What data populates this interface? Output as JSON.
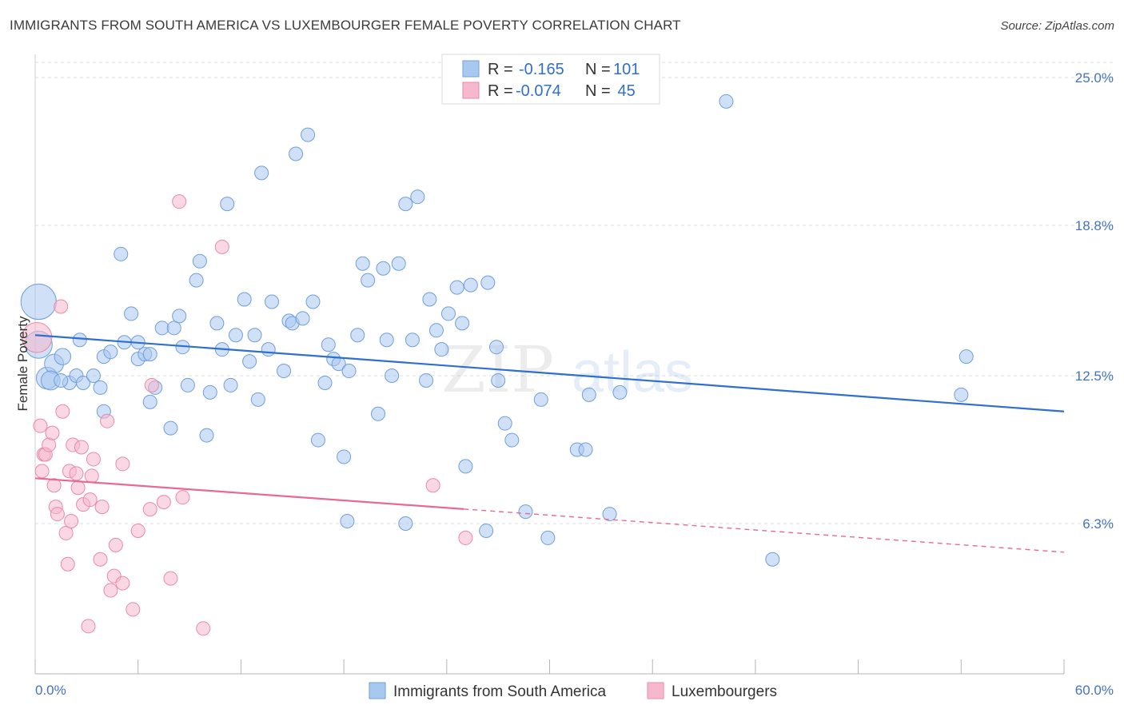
{
  "title": "IMMIGRANTS FROM SOUTH AMERICA VS LUXEMBOURGER FEMALE POVERTY CORRELATION CHART",
  "source": "Source: ZipAtlas.com",
  "watermark": {
    "zip": "ZIP",
    "atlas": "atlas"
  },
  "chart_data": {
    "type": "scatter",
    "ylabel": "Female Poverty",
    "xlim": [
      0,
      60
    ],
    "ylim": [
      0,
      25.0
    ],
    "x_tick_labels": [
      "0.0%",
      "60.0%"
    ],
    "y_ticks": [
      6.3,
      12.5,
      18.8,
      25.0
    ],
    "y_tick_labels": [
      "6.3%",
      "12.5%",
      "18.8%",
      "25.0%"
    ],
    "grid": true,
    "legend": {
      "placement": "top-center",
      "entries": [
        {
          "r_label": "R = ",
          "r_value": "-0.165",
          "n_label": "N = ",
          "n_value": "101",
          "color": "#a9c8f0"
        },
        {
          "r_label": "R = ",
          "r_value": "-0.074",
          "n_label": "N = ",
          "n_value": " 45",
          "color": "#f6b8cc"
        }
      ]
    },
    "series": [
      {
        "name": "Immigrants from South America",
        "color": "#a9c8f0",
        "stroke": "#6f9fdc",
        "trend_color": "#2f6fcf",
        "trend": {
          "x0": 0,
          "y0": 14.2,
          "x1": 60,
          "y1": 11.0,
          "solid_to": 60
        },
        "points": [
          [
            0.2,
            15.6,
            2.6
          ],
          [
            0.2,
            13.8,
            2.0
          ],
          [
            0.7,
            12.4,
            1.6
          ],
          [
            1.1,
            13.0,
            1.4
          ],
          [
            1.6,
            13.3,
            1.2
          ],
          [
            2.0,
            12.2,
            1.0
          ],
          [
            2.4,
            12.5,
            1.0
          ],
          [
            2.6,
            14.0,
            1.0
          ],
          [
            2.8,
            12.2,
            1.0
          ],
          [
            3.4,
            12.5,
            1.0
          ],
          [
            3.8,
            12.0,
            1.0
          ],
          [
            4.0,
            11.0,
            1.0
          ],
          [
            4.0,
            13.3,
            1.0
          ],
          [
            4.4,
            13.5,
            1.0
          ],
          [
            5.0,
            17.6,
            1.0
          ],
          [
            5.2,
            13.9,
            1.0
          ],
          [
            5.6,
            15.1,
            1.0
          ],
          [
            6.0,
            13.2,
            1.0
          ],
          [
            6.0,
            13.9,
            1.0
          ],
          [
            6.4,
            13.4,
            1.0
          ],
          [
            6.7,
            13.4,
            1.0
          ],
          [
            6.7,
            11.4,
            1.0
          ],
          [
            7.0,
            12.0,
            1.0
          ],
          [
            7.4,
            14.5,
            1.0
          ],
          [
            7.9,
            10.3,
            1.0
          ],
          [
            8.1,
            14.5,
            1.0
          ],
          [
            8.4,
            15.0,
            1.0
          ],
          [
            8.6,
            13.7,
            1.0
          ],
          [
            8.9,
            12.1,
            1.0
          ],
          [
            9.4,
            16.5,
            1.0
          ],
          [
            9.6,
            17.3,
            1.0
          ],
          [
            10.0,
            10.0,
            1.0
          ],
          [
            10.2,
            11.8,
            1.0
          ],
          [
            10.6,
            14.7,
            1.0
          ],
          [
            10.9,
            13.6,
            1.0
          ],
          [
            11.2,
            19.7,
            1.0
          ],
          [
            11.4,
            12.1,
            1.0
          ],
          [
            11.7,
            14.2,
            1.0
          ],
          [
            12.2,
            15.7,
            1.0
          ],
          [
            12.5,
            13.1,
            1.0
          ],
          [
            12.8,
            14.2,
            1.0
          ],
          [
            13.0,
            11.5,
            1.0
          ],
          [
            13.2,
            21.0,
            1.0
          ],
          [
            13.6,
            13.6,
            1.0
          ],
          [
            13.8,
            15.6,
            1.0
          ],
          [
            14.5,
            12.7,
            1.0
          ],
          [
            14.8,
            14.8,
            1.0
          ],
          [
            15.0,
            14.7,
            1.0
          ],
          [
            15.2,
            21.8,
            1.0
          ],
          [
            15.6,
            14.9,
            1.0
          ],
          [
            15.9,
            22.6,
            1.0
          ],
          [
            16.2,
            15.6,
            1.0
          ],
          [
            16.5,
            9.8,
            1.0
          ],
          [
            16.9,
            12.2,
            1.0
          ],
          [
            17.1,
            13.8,
            1.0
          ],
          [
            17.4,
            13.2,
            1.0
          ],
          [
            17.7,
            13.0,
            1.0
          ],
          [
            18.0,
            9.1,
            1.0
          ],
          [
            18.2,
            6.4,
            1.0
          ],
          [
            18.3,
            12.7,
            1.0
          ],
          [
            18.8,
            14.2,
            1.0
          ],
          [
            19.1,
            17.2,
            1.0
          ],
          [
            19.4,
            16.5,
            1.0
          ],
          [
            20.0,
            10.9,
            1.0
          ],
          [
            20.3,
            17.0,
            1.0
          ],
          [
            20.5,
            14.0,
            1.0
          ],
          [
            20.8,
            12.5,
            1.0
          ],
          [
            21.2,
            17.2,
            1.0
          ],
          [
            21.6,
            19.7,
            1.0
          ],
          [
            21.6,
            6.3,
            1.0
          ],
          [
            22.0,
            14.0,
            1.0
          ],
          [
            22.3,
            20.0,
            1.0
          ],
          [
            22.8,
            12.3,
            1.0
          ],
          [
            23.0,
            15.7,
            1.0
          ],
          [
            23.4,
            14.4,
            1.0
          ],
          [
            23.7,
            13.6,
            1.0
          ],
          [
            24.1,
            15.1,
            1.0
          ],
          [
            24.6,
            16.2,
            1.0
          ],
          [
            24.9,
            14.7,
            1.0
          ],
          [
            25.1,
            8.7,
            1.0
          ],
          [
            25.4,
            16.3,
            1.0
          ],
          [
            26.3,
            6.0,
            1.0
          ],
          [
            26.4,
            16.4,
            1.0
          ],
          [
            26.9,
            13.7,
            1.0
          ],
          [
            27.0,
            12.3,
            1.0
          ],
          [
            27.4,
            10.5,
            1.0
          ],
          [
            27.8,
            9.8,
            1.0
          ],
          [
            28.6,
            6.8,
            1.0
          ],
          [
            29.5,
            11.5,
            1.0
          ],
          [
            29.9,
            5.7,
            1.0
          ],
          [
            31.6,
            9.4,
            1.0
          ],
          [
            32.1,
            9.4,
            1.0
          ],
          [
            32.3,
            11.7,
            1.0
          ],
          [
            33.5,
            6.7,
            1.0
          ],
          [
            34.1,
            11.8,
            1.0
          ],
          [
            40.3,
            24.0,
            1.0
          ],
          [
            43.0,
            4.8,
            1.0
          ],
          [
            54.0,
            11.7,
            1.0
          ],
          [
            54.3,
            13.3,
            1.0
          ],
          [
            0.9,
            12.3,
            1.4
          ],
          [
            1.5,
            12.3,
            1.0
          ]
        ]
      },
      {
        "name": "Luxembourgers",
        "color": "#f6b8cc",
        "stroke": "#e88aa8",
        "trend_color": "#e86a94",
        "trend": {
          "x0": 0,
          "y0": 8.2,
          "x1": 60,
          "y1": 5.1,
          "solid_to": 25
        },
        "points": [
          [
            0.1,
            14.1,
            2.2
          ],
          [
            0.3,
            10.4,
            1.0
          ],
          [
            0.4,
            8.5,
            1.0
          ],
          [
            0.5,
            9.2,
            1.0
          ],
          [
            0.6,
            9.2,
            1.0
          ],
          [
            0.8,
            9.6,
            1.0
          ],
          [
            1.0,
            10.1,
            1.0
          ],
          [
            1.1,
            7.9,
            1.0
          ],
          [
            1.2,
            7.0,
            1.0
          ],
          [
            1.3,
            6.7,
            1.0
          ],
          [
            1.5,
            15.4,
            1.0
          ],
          [
            1.6,
            11.0,
            1.0
          ],
          [
            1.8,
            5.9,
            1.0
          ],
          [
            1.9,
            4.6,
            1.0
          ],
          [
            2.0,
            8.5,
            1.0
          ],
          [
            2.1,
            6.4,
            1.0
          ],
          [
            2.2,
            9.6,
            1.0
          ],
          [
            2.4,
            8.4,
            1.0
          ],
          [
            2.5,
            7.8,
            1.0
          ],
          [
            2.7,
            9.5,
            1.0
          ],
          [
            2.8,
            7.1,
            1.0
          ],
          [
            3.1,
            2.0,
            1.0
          ],
          [
            3.2,
            7.3,
            1.0
          ],
          [
            3.3,
            8.3,
            1.0
          ],
          [
            3.4,
            9.0,
            1.0
          ],
          [
            3.8,
            4.8,
            1.0
          ],
          [
            3.9,
            7.0,
            1.0
          ],
          [
            4.2,
            10.6,
            1.0
          ],
          [
            4.4,
            3.5,
            1.0
          ],
          [
            4.6,
            4.1,
            1.0
          ],
          [
            4.7,
            5.4,
            1.0
          ],
          [
            5.1,
            3.8,
            1.0
          ],
          [
            5.1,
            8.8,
            1.0
          ],
          [
            5.7,
            2.7,
            1.0
          ],
          [
            6.0,
            6.0,
            1.0
          ],
          [
            6.7,
            6.9,
            1.0
          ],
          [
            6.8,
            12.1,
            1.0
          ],
          [
            7.5,
            7.2,
            1.0
          ],
          [
            7.9,
            4.0,
            1.0
          ],
          [
            8.4,
            19.8,
            1.0
          ],
          [
            8.6,
            7.4,
            1.0
          ],
          [
            9.8,
            1.9,
            1.0
          ],
          [
            10.9,
            17.9,
            1.0
          ],
          [
            23.2,
            7.9,
            1.0
          ],
          [
            25.1,
            5.7,
            1.0
          ]
        ]
      }
    ]
  }
}
